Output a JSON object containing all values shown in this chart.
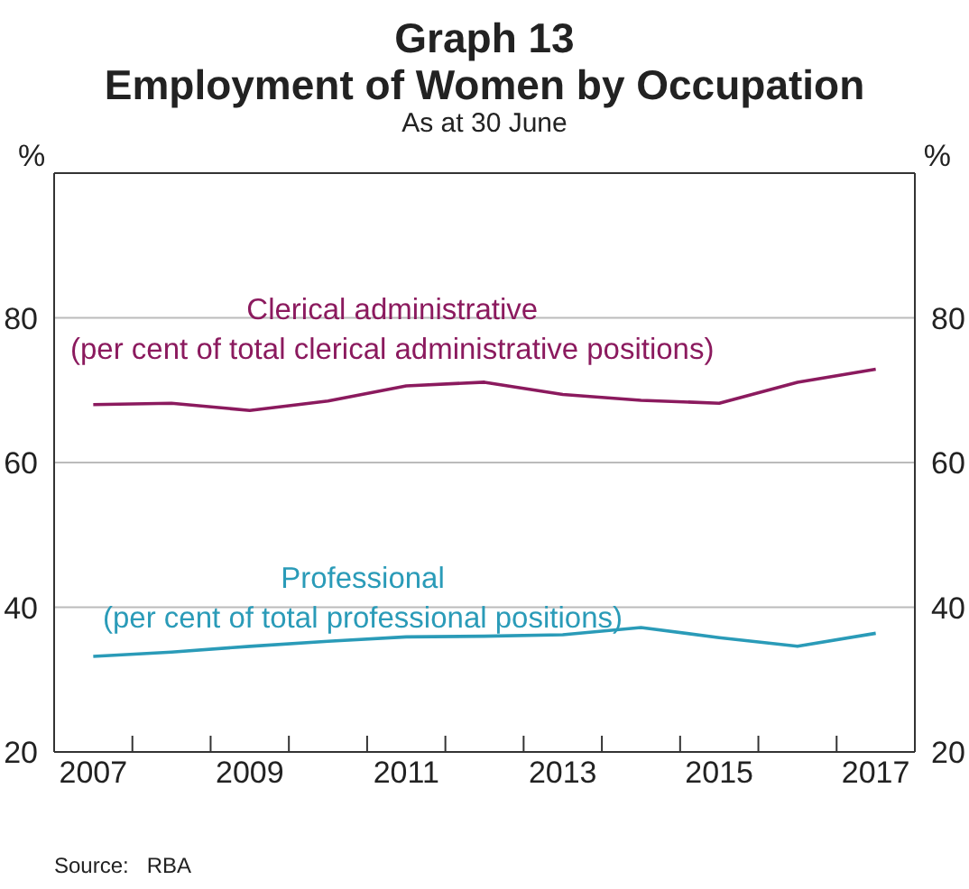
{
  "chart_data": {
    "type": "line",
    "title": "Graph 13\nEmployment of Women by Occupation",
    "subtitle": "As at 30 June",
    "ylabel": "%",
    "y2label": "%",
    "x": [
      2007,
      2008,
      2009,
      2010,
      2011,
      2012,
      2013,
      2014,
      2015,
      2016,
      2017
    ],
    "series": [
      {
        "name": "Clerical administrative\n(per cent of total clerical administrative positions)",
        "color": "#8b1a5e",
        "values": [
          68.0,
          68.2,
          67.2,
          68.5,
          70.6,
          71.1,
          69.4,
          68.6,
          68.2,
          71.1,
          72.9
        ]
      },
      {
        "name": "Professional\n(per cent of total professional positions)",
        "color": "#2a9bb8",
        "values": [
          33.2,
          33.8,
          34.6,
          35.3,
          35.9,
          36.0,
          36.2,
          37.2,
          35.8,
          34.6,
          36.4
        ]
      }
    ],
    "xlim": [
      2006.5,
      2017.5
    ],
    "xticks": [
      2007,
      2009,
      2011,
      2013,
      2015,
      2017,
      {
        "value": 2007.5,
        "label": null
      },
      {
        "value": 2008.5,
        "label": null
      },
      {
        "value": 2009.5,
        "label": null
      },
      {
        "value": 2010.5,
        "label": null
      },
      {
        "value": 2011.5,
        "label": null
      },
      {
        "value": 2012.5,
        "label": null
      },
      {
        "value": 2013.5,
        "label": null
      },
      {
        "value": 2014.5,
        "label": null
      },
      {
        "value": 2015.5,
        "label": null
      },
      {
        "value": 2016.5,
        "label": null
      }
    ],
    "ylim": [
      20,
      100
    ],
    "yticks": [
      20,
      40,
      60,
      80
    ],
    "y2lim": [
      20,
      100
    ],
    "y2ticks": [
      20,
      40,
      60,
      80
    ],
    "grid": "y",
    "marker": "none",
    "line_style": "solid",
    "annotations": [
      "Source:   RBA"
    ]
  }
}
